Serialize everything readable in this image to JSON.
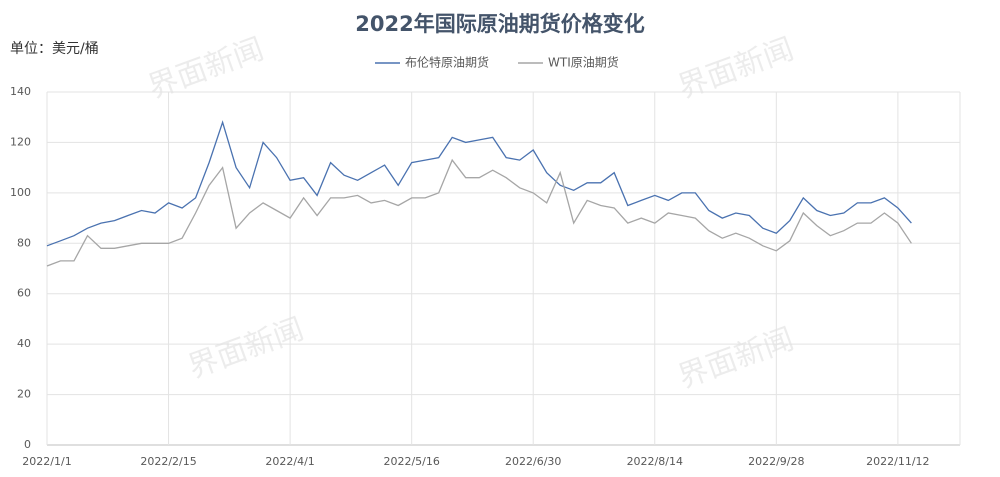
{
  "chart_data": {
    "type": "line",
    "title": "2022年国际原油期货价格变化",
    "unit_label": "单位：美元/桶",
    "watermark": "界面新闻",
    "x": [
      "2022/1/1",
      "2022/1/6",
      "2022/1/11",
      "2022/1/16",
      "2022/1/21",
      "2022/1/26",
      "2022/1/31",
      "2022/2/5",
      "2022/2/10",
      "2022/2/15",
      "2022/2/20",
      "2022/2/25",
      "2022/3/2",
      "2022/3/7",
      "2022/3/12",
      "2022/3/17",
      "2022/3/22",
      "2022/3/27",
      "2022/4/1",
      "2022/4/6",
      "2022/4/11",
      "2022/4/16",
      "2022/4/21",
      "2022/4/26",
      "2022/5/1",
      "2022/5/6",
      "2022/5/11",
      "2022/5/16",
      "2022/5/21",
      "2022/5/26",
      "2022/5/31",
      "2022/6/5",
      "2022/6/10",
      "2022/6/15",
      "2022/6/20",
      "2022/6/25",
      "2022/6/30",
      "2022/7/5",
      "2022/7/10",
      "2022/7/15",
      "2022/7/20",
      "2022/7/25",
      "2022/7/30",
      "2022/8/4",
      "2022/8/9",
      "2022/8/14",
      "2022/8/19",
      "2022/8/24",
      "2022/8/29",
      "2022/9/3",
      "2022/9/8",
      "2022/9/13",
      "2022/9/18",
      "2022/9/23",
      "2022/9/28",
      "2022/10/3",
      "2022/10/8",
      "2022/10/13",
      "2022/10/18",
      "2022/10/23",
      "2022/10/28",
      "2022/11/2",
      "2022/11/7",
      "2022/11/12",
      "2022/11/17"
    ],
    "series": [
      {
        "name": "布伦特原油期货",
        "color": "#4a72b0",
        "values": [
          79,
          81,
          83,
          86,
          88,
          89,
          91,
          93,
          92,
          96,
          94,
          98,
          112,
          128,
          110,
          102,
          120,
          114,
          105,
          106,
          99,
          112,
          107,
          105,
          108,
          111,
          103,
          112,
          113,
          114,
          122,
          120,
          121,
          122,
          114,
          113,
          117,
          108,
          103,
          101,
          104,
          104,
          108,
          95,
          97,
          99,
          97,
          100,
          100,
          93,
          90,
          92,
          91,
          86,
          84,
          89,
          98,
          93,
          91,
          92,
          96,
          96,
          98,
          94,
          88
        ]
      },
      {
        "name": "WTI原油期货",
        "color": "#a6a6a6",
        "values": [
          71,
          73,
          73,
          83,
          78,
          78,
          79,
          80,
          80,
          80,
          82,
          92,
          103,
          110,
          86,
          92,
          96,
          93,
          90,
          98,
          91,
          98,
          98,
          99,
          96,
          97,
          95,
          98,
          98,
          100,
          113,
          106,
          106,
          109,
          106,
          102,
          100,
          96,
          108,
          88,
          97,
          95,
          94,
          88,
          90,
          88,
          92,
          91,
          90,
          85,
          82,
          84,
          82,
          79,
          77,
          81,
          92,
          87,
          83,
          85,
          88,
          88,
          92,
          88,
          80
        ]
      }
    ],
    "xlim": [
      "2022/1/1",
      "2022/12/5"
    ],
    "xticks": [
      "2022/1/1",
      "2022/2/15",
      "2022/4/1",
      "2022/5/16",
      "2022/6/30",
      "2022/8/14",
      "2022/9/28",
      "2022/11/12"
    ],
    "ylim": [
      0,
      140
    ],
    "yticks": [
      0,
      20,
      40,
      60,
      80,
      100,
      120,
      140
    ],
    "grid": true,
    "legend": "top"
  }
}
